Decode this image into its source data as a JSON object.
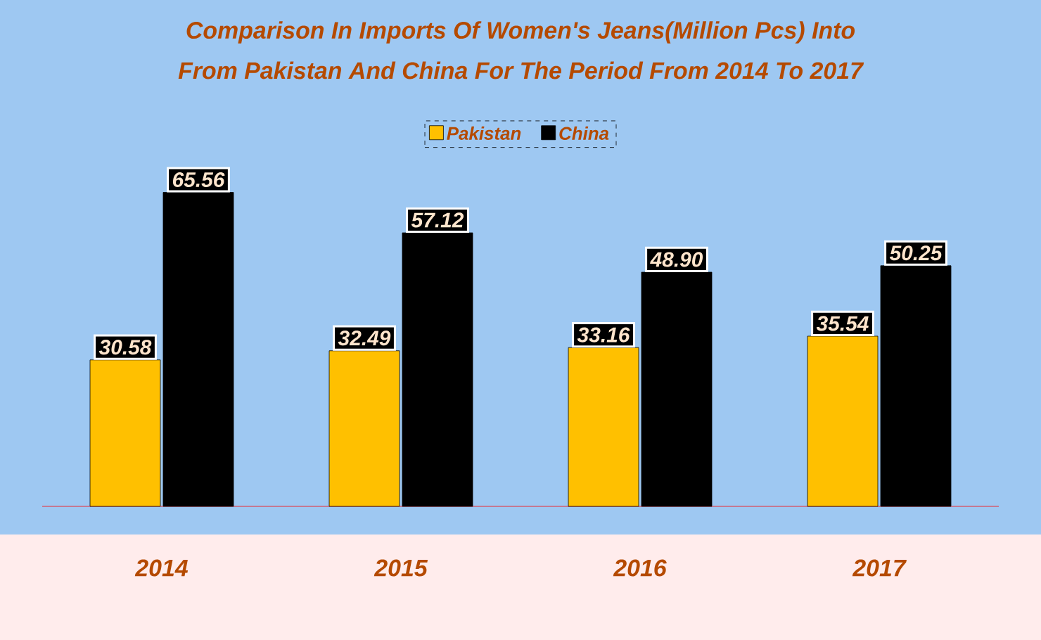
{
  "chart_data": {
    "type": "bar",
    "title": "Comparison In Imports Of Women's Jeans(Million Pcs) Into",
    "subtitle": "From Pakistan And China For The Period From 2014 To 2017",
    "categories": [
      "2014",
      "2015",
      "2016",
      "2017"
    ],
    "series": [
      {
        "name": "Pakistan",
        "color": "#ffc000",
        "values": [
          30.58,
          32.49,
          33.16,
          35.54
        ],
        "value_labels": [
          "30.58",
          "32.49",
          "33.16",
          "35.54"
        ]
      },
      {
        "name": "China",
        "color": "#000000",
        "values": [
          65.56,
          57.12,
          48.9,
          50.25
        ],
        "value_labels": [
          "65.56",
          "57.12",
          "48.90",
          "50.25"
        ]
      }
    ],
    "legend": "top"
  }
}
